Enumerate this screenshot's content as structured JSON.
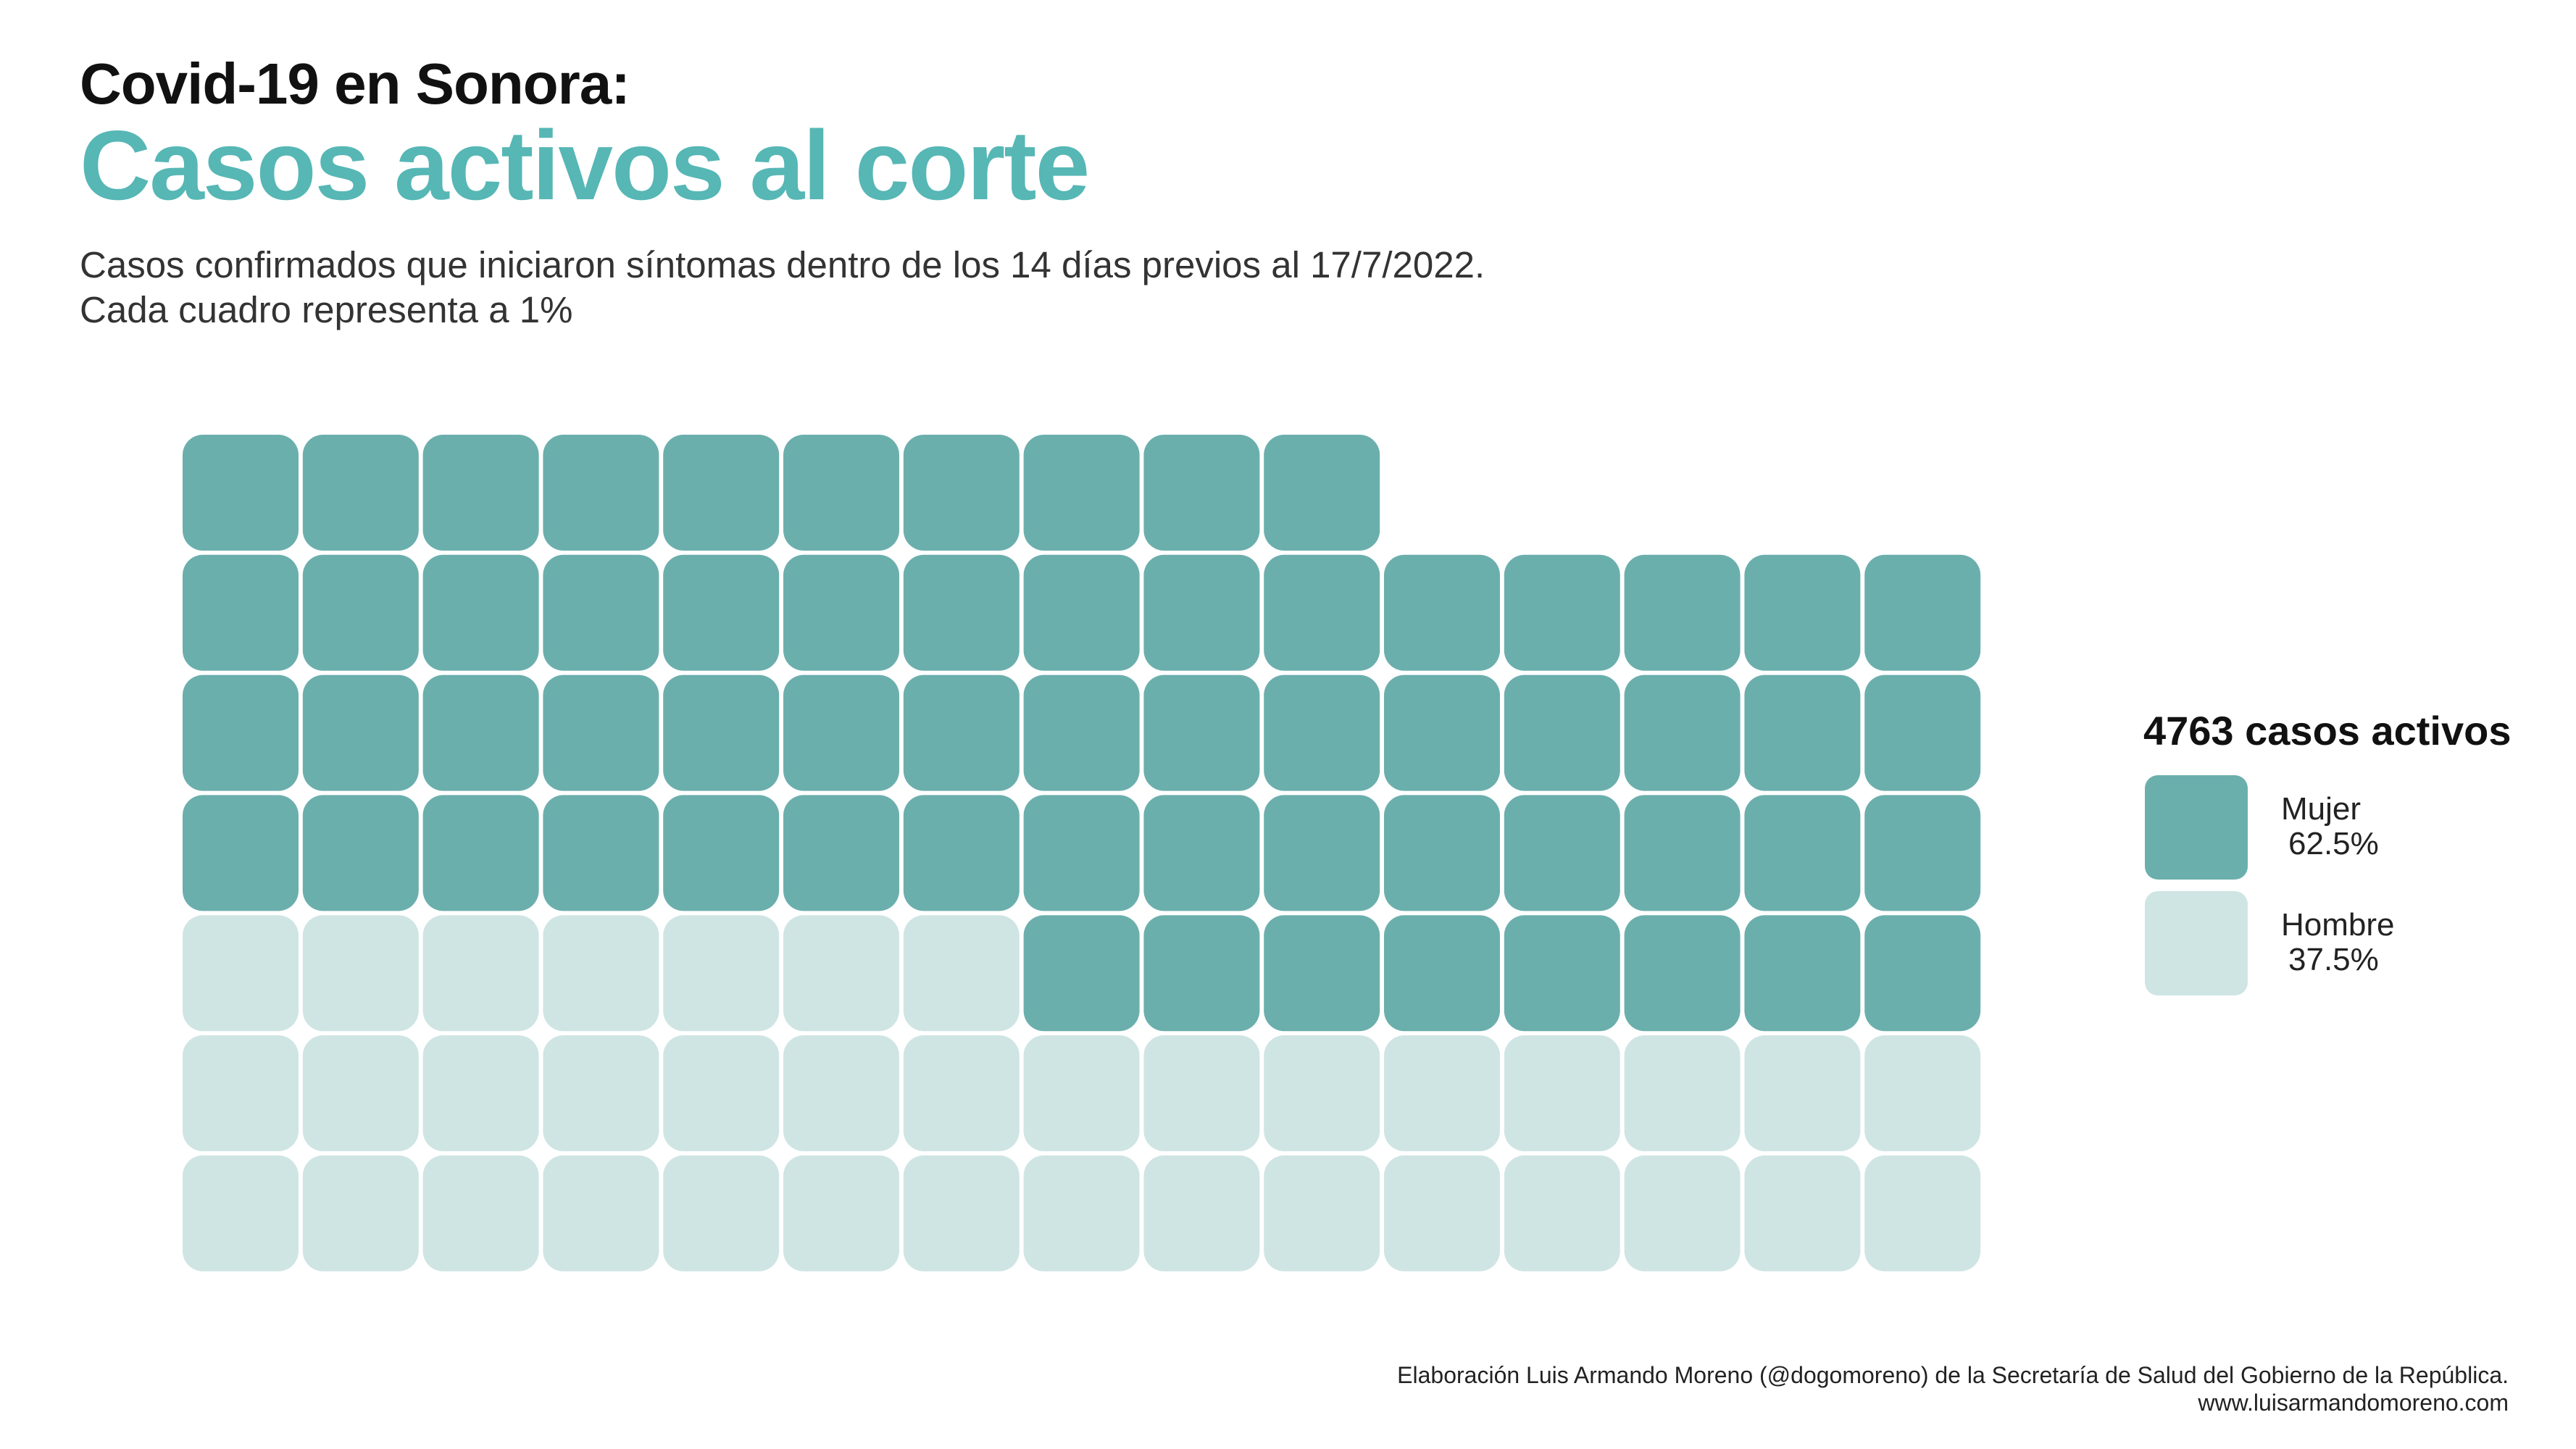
{
  "header": {
    "title": "Covid-19 en Sonora:",
    "subtitle": "Casos activos al corte",
    "description_line1": "Casos confirmados que iniciaron síntomas dentro de los 14 días previos al 17/7/2022.",
    "description_line2": "Cada cuadro representa a 1%"
  },
  "legend": {
    "title": "4763 casos activos",
    "items": [
      {
        "label": "Mujer",
        "percent": "62.5%",
        "color": "#6bafad"
      },
      {
        "label": "Hombre",
        "percent": "37.5%",
        "color": "#cfe5e4"
      }
    ]
  },
  "chart_data": {
    "type": "waffle",
    "total_cases": 4763,
    "unit": "1%",
    "grid_rows": 7,
    "grid_cols": 15,
    "series": [
      {
        "name": "Mujer",
        "value": 62.5,
        "color": "#6bafad"
      },
      {
        "name": "Hombre",
        "value": 37.5,
        "color": "#cfe5e4"
      }
    ]
  },
  "footer": {
    "line1": "Elaboración Luis Armando Moreno (@dogomoreno) de la Secretaría de Salud del Gobierno de la República.",
    "line2": "www.luisarmandomoreno.com"
  }
}
